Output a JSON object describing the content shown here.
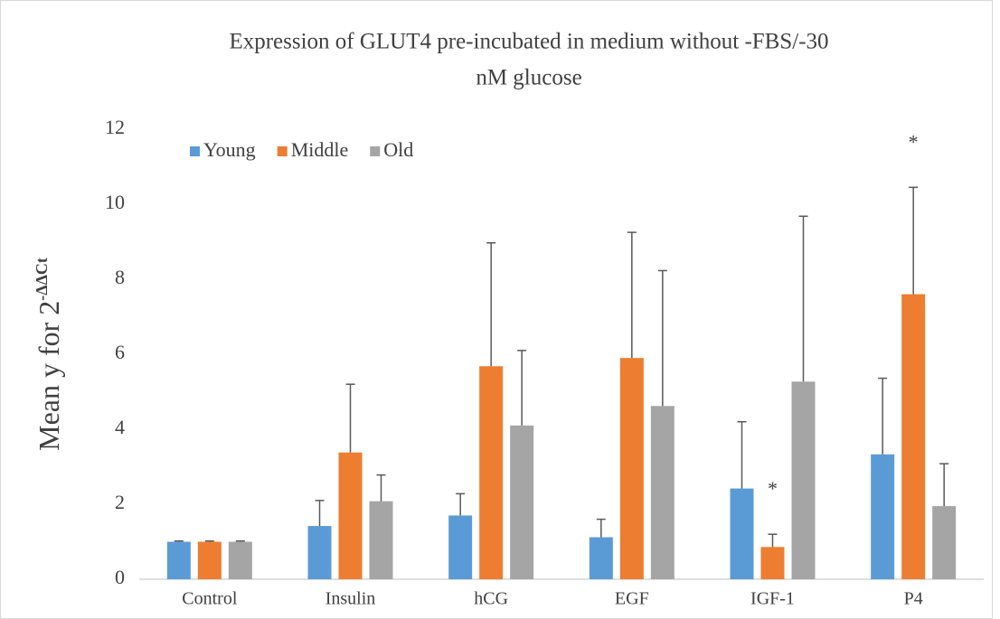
{
  "chart_data": {
    "type": "bar",
    "title": [
      "Expression of GLUT4 pre-incubated in medium without -FBS/-30",
      "nM glucose"
    ],
    "ylabel": "Mean y for 2",
    "ylabel_sup": "-ΔΔCt",
    "categories": [
      "Control",
      "Insulin",
      "hCG",
      "EGF",
      "IGF-1",
      "P4"
    ],
    "series": [
      {
        "name": "Young",
        "color": "#5b9bd5",
        "values": [
          1,
          1.42,
          1.7,
          1.12,
          2.42,
          3.33
        ],
        "errors": [
          0.02,
          0.68,
          0.58,
          0.48,
          1.78,
          2.03
        ]
      },
      {
        "name": "Middle",
        "color": "#ed7d31",
        "values": [
          1,
          3.38,
          5.68,
          5.9,
          0.86,
          7.6
        ],
        "errors": [
          0.02,
          1.82,
          3.29,
          3.35,
          0.34,
          2.85
        ]
      },
      {
        "name": "Old",
        "color": "#a5a5a5",
        "values": [
          1,
          2.08,
          4.1,
          4.62,
          5.27,
          1.95
        ],
        "errors": [
          0.02,
          0.7,
          2.0,
          3.61,
          4.41,
          1.13
        ]
      }
    ],
    "annotations": [
      {
        "text": "*",
        "category": "IGF-1",
        "series": "Middle"
      },
      {
        "text": "*",
        "category": "P4",
        "series": "Middle"
      }
    ],
    "ylim": [
      0,
      12
    ],
    "yticks": [
      0,
      2,
      4,
      6,
      8,
      10,
      12
    ],
    "grid": false,
    "legend": "top-left"
  }
}
